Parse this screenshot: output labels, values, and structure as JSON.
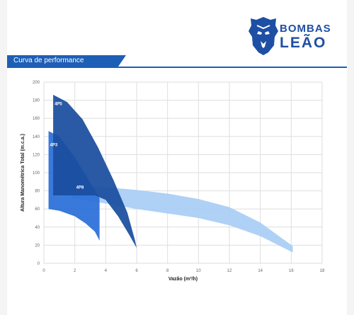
{
  "brand": {
    "line1": "BOMBAS",
    "line2": "LEÃO",
    "color": "#1f4fa5",
    "icon": "lion-head-logo-icon"
  },
  "section_title": "Curva de performance",
  "chart_data": {
    "type": "area",
    "xlabel": "Vazão (m³/h)",
    "ylabel": "Altura Manométrica Total (m.c.a.)",
    "xlim": [
      0,
      18
    ],
    "ylim": [
      0,
      200
    ],
    "x_ticks": [
      "0",
      "2",
      "4",
      "6",
      "8",
      "10",
      "12",
      "14",
      "16",
      "18"
    ],
    "y_ticks": [
      "0",
      "20",
      "40",
      "60",
      "80",
      "100",
      "120",
      "140",
      "160",
      "180",
      "200"
    ],
    "grid": true,
    "series": [
      {
        "name": "4P8",
        "color": "#a9cdf5",
        "label_pos": [
          2,
          84
        ],
        "upper": [
          [
            1.8,
            86
          ],
          [
            4,
            84
          ],
          [
            6,
            81
          ],
          [
            8,
            77
          ],
          [
            10,
            71
          ],
          [
            12,
            62
          ],
          [
            14,
            45
          ],
          [
            16.1,
            19
          ]
        ],
        "lower": [
          [
            1.8,
            72
          ],
          [
            4,
            66
          ],
          [
            6,
            60
          ],
          [
            8,
            55
          ],
          [
            10,
            50
          ],
          [
            12,
            42
          ],
          [
            14,
            30
          ],
          [
            16.1,
            12
          ]
        ]
      },
      {
        "name": "4P3",
        "color": "#2a6fd8",
        "label_pos": [
          0.3,
          131
        ],
        "upper": [
          [
            0.3,
            146
          ],
          [
            1,
            140
          ],
          [
            2,
            117
          ],
          [
            3,
            89
          ],
          [
            3.6,
            72
          ],
          [
            3.6,
            25
          ]
        ],
        "lower": [
          [
            0.3,
            60
          ],
          [
            1,
            58
          ],
          [
            2,
            52
          ],
          [
            2.7,
            44
          ],
          [
            3.3,
            35
          ],
          [
            3.6,
            25
          ]
        ]
      },
      {
        "name": "4P5",
        "color": "#1a4d9e",
        "label_pos": [
          0.6,
          176
        ],
        "upper": [
          [
            0.6,
            186
          ],
          [
            1.5,
            178
          ],
          [
            2.5,
            159
          ],
          [
            3.5,
            128
          ],
          [
            4.5,
            92
          ],
          [
            5.4,
            56
          ],
          [
            5.9,
            25
          ],
          [
            6,
            17
          ]
        ],
        "lower": [
          [
            0.6,
            75
          ],
          [
            1.5,
            75
          ],
          [
            2.5,
            75
          ],
          [
            3.3,
            75
          ],
          [
            4,
            70
          ],
          [
            4.8,
            52
          ],
          [
            5.5,
            32
          ],
          [
            6,
            17
          ]
        ]
      }
    ]
  }
}
